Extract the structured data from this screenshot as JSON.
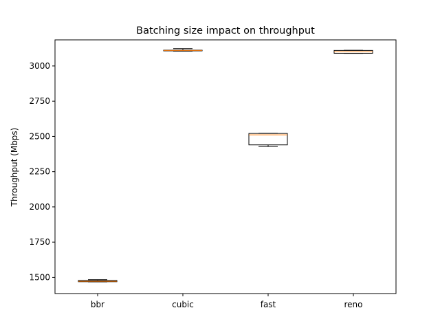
{
  "chart_data": {
    "type": "boxplot",
    "title": "Batching size impact on throughput",
    "xlabel": "",
    "ylabel": "Throughput (Mbps)",
    "ylim": [
      1385,
      3185
    ],
    "yticks": [
      1500,
      1750,
      2000,
      2250,
      2500,
      2750,
      3000
    ],
    "categories": [
      "bbr",
      "cubic",
      "fast",
      "reno"
    ],
    "boxes": [
      {
        "category": "bbr",
        "whislo": 1468,
        "q1": 1469,
        "med": 1472,
        "q3": 1478,
        "whishi": 1484
      },
      {
        "category": "cubic",
        "whislo": 3105,
        "q1": 3107,
        "med": 3110,
        "q3": 3112,
        "whishi": 3123
      },
      {
        "category": "fast",
        "whislo": 2428,
        "q1": 2440,
        "med": 2511,
        "q3": 2521,
        "whishi": 2522
      },
      {
        "category": "reno",
        "whislo": 3089,
        "q1": 3090,
        "med": 3100,
        "q3": 3110,
        "whishi": 3111
      }
    ],
    "grid": false,
    "colors": {
      "box": "#000000",
      "median": "#ff7f0e",
      "axes": "#000000",
      "background": "#ffffff"
    }
  }
}
